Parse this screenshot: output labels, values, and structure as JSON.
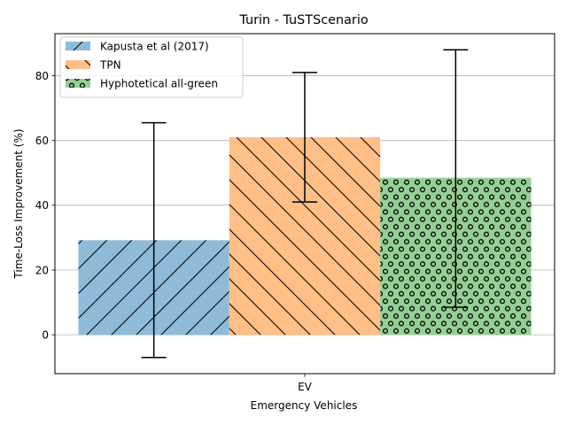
{
  "chart_data": {
    "type": "bar",
    "title": "Turin - TuSTScenario",
    "xlabel": "Emergency Vehicles",
    "ylabel": "Time-Loss Improvement (%)",
    "categories": [
      "EV"
    ],
    "ylim": [
      -12,
      93
    ],
    "yticks": [
      0,
      20,
      40,
      60,
      80
    ],
    "grid": "y",
    "legend_position": "top-left",
    "series": [
      {
        "name": "Kapusta et al (2017)",
        "values": [
          29.2
        ],
        "error_low": [
          -7.0
        ],
        "error_high": [
          65.5
        ],
        "color": "#8fbbd9",
        "hatch": "forward-slash"
      },
      {
        "name": "TPN",
        "values": [
          61.0
        ],
        "error_low": [
          41.0
        ],
        "error_high": [
          81.0
        ],
        "color": "#ffbf86",
        "hatch": "back-slash"
      },
      {
        "name": "Hyphotetical all-green",
        "values": [
          48.5
        ],
        "error_low": [
          8.5
        ],
        "error_high": [
          88.0
        ],
        "color": "#95cf95",
        "hatch": "circles"
      }
    ]
  }
}
